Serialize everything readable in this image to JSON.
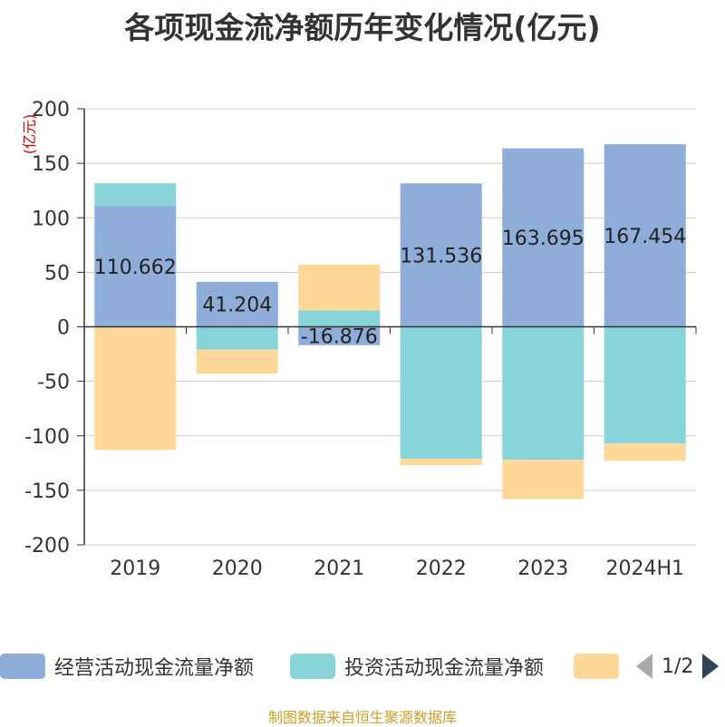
{
  "chart_data": {
    "type": "bar",
    "stacked": true,
    "title": "各项现金流净额历年变化情况(亿元)",
    "ylabel": "(亿元)",
    "ylim": [
      -200,
      200
    ],
    "yticks": [
      200,
      150,
      100,
      50,
      0,
      -50,
      -100,
      -150,
      -200
    ],
    "grid": true,
    "categories": [
      "2019",
      "2020",
      "2021",
      "2022",
      "2023",
      "2024H1"
    ],
    "series": [
      {
        "name": "经营活动现金流量净额",
        "color": "#8eadd9",
        "values": [
          110.662,
          41.204,
          -16.876,
          131.536,
          163.695,
          167.454
        ],
        "labels": [
          "110.662",
          "41.204",
          "-16.876",
          "131.536",
          "163.695",
          "167.454"
        ]
      },
      {
        "name": "投资活动现金流量净额",
        "color": "#87d5d8",
        "values": [
          21,
          -21,
          15,
          -121,
          -122,
          -107
        ]
      },
      {
        "name": "",
        "color": "#fdd898",
        "values": [
          -113,
          -22,
          42,
          -6,
          -36,
          -16
        ]
      }
    ],
    "legend_position": "bottom"
  },
  "legend": {
    "items": [
      "经营活动现金流量净额",
      "投资活动现金流量净额",
      ""
    ],
    "page": "1/2"
  },
  "source": "制图数据来自恒生聚源数据库"
}
